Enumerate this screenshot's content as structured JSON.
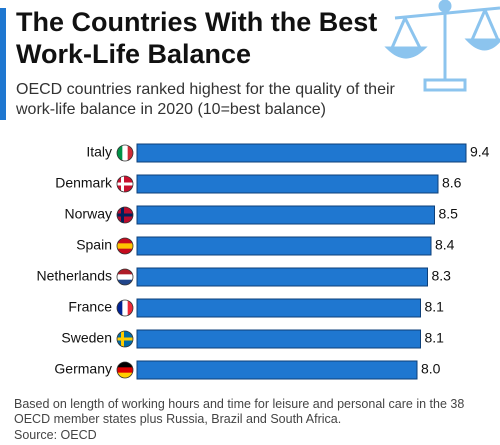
{
  "chart_data": {
    "type": "bar",
    "orientation": "horizontal",
    "title": "The Countries With the Best Work-Life Balance",
    "subtitle": "OECD countries ranked highest for the quality of their work-life balance in 2020 (10=best balance)",
    "categories": [
      "Italy",
      "Denmark",
      "Norway",
      "Spain",
      "Netherlands",
      "France",
      "Sweden",
      "Germany"
    ],
    "values": [
      9.4,
      8.6,
      8.5,
      8.4,
      8.3,
      8.1,
      8.1,
      8.0
    ],
    "value_labels": [
      "9.4",
      "8.6",
      "8.5",
      "8.4",
      "8.3",
      "8.1",
      "8.1",
      "8.0"
    ],
    "color": "#1f77d0",
    "note": "Based on length of working hours and time for leisure and personal care in the 38 OECD member states plus Russia, Brazil and South Africa.",
    "source": "Source: OECD"
  }
}
